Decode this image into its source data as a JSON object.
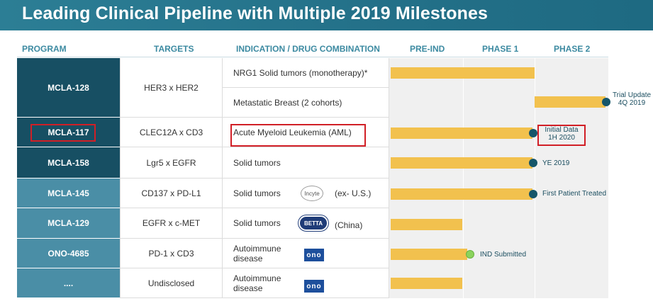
{
  "title": "Leading Clinical Pipeline with Multiple 2019 Milestones",
  "headers": {
    "program": "PROGRAM",
    "targets": "TARGETS",
    "indication": "INDICATION / DRUG COMBINATION",
    "pre_ind": "PRE-IND",
    "phase1": "PHASE 1",
    "phase2": "PHASE 2"
  },
  "programs": [
    {
      "name": "MCLA-128",
      "target": "HER3 x HER2"
    },
    {
      "name": "MCLA-117",
      "target": "CLEC12A x CD3"
    },
    {
      "name": "MCLA-158",
      "target": "Lgr5 x EGFR"
    },
    {
      "name": "MCLA-145",
      "target": "CD137 x PD-L1"
    },
    {
      "name": "MCLA-129",
      "target": "EGFR x c-MET"
    },
    {
      "name": "ONO-4685",
      "target": "PD-1 x CD3"
    },
    {
      "name": "....",
      "target": "Undisclosed"
    }
  ],
  "indications": {
    "mcla128_a": "NRG1 Solid tumors (monotherapy)*",
    "mcla128_b": "Metastatic Breast (2 cohorts)",
    "mcla117": "Acute Myeloid Leukemia  (AML)",
    "mcla158": "Solid tumors",
    "mcla145": "Solid tumors",
    "mcla145_partner": "(ex- U.S.)",
    "mcla129": "Solid tumors",
    "mcla129_partner": "(China)",
    "ono4685_line1": "Autoimmune",
    "ono4685_line2": "disease",
    "undisclosed_line1": "Autoimmune",
    "undisclosed_line2": "disease"
  },
  "logos": {
    "incyte": "Incyte",
    "betta": "BETTA",
    "ono": "ono"
  },
  "milestones": {
    "mcla128_line1": "Trial Update",
    "mcla128_line2": "4Q 2019",
    "mcla117_line1": "Initial Data",
    "mcla117_line2": "1H 2020",
    "mcla158": "YE 2019",
    "mcla145": "First Patient Treated",
    "ono4685": "IND Submitted"
  },
  "colors": {
    "title_bg": "#247189",
    "program_dark": "#174f63",
    "program_mid": "#4a8ea6",
    "bar": "#f2c14e",
    "milestone_dot": "#15566a",
    "ind_dot": "#8bd35d",
    "highlight": "#d11f26"
  }
}
